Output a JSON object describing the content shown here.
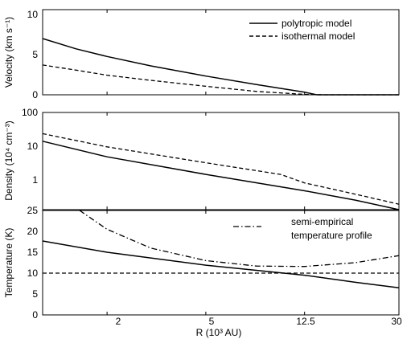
{
  "chart_data": [
    {
      "type": "line",
      "ylabel": "Velocity (km s⁻¹)",
      "xscale": "log",
      "xlim": [
        1.1,
        30
      ],
      "ylim": [
        0,
        10
      ],
      "yticks": [
        "0",
        "5",
        "10"
      ],
      "legend_placement": "top-right",
      "series": [
        {
          "name": "polytropic model",
          "style": "solid",
          "x": [
            1.1,
            1.5,
            2,
            3,
            5,
            8,
            12.5,
            14,
            20,
            30
          ],
          "y": [
            6.6,
            5.4,
            4.5,
            3.4,
            2.2,
            1.2,
            0.3,
            0,
            0,
            0
          ]
        },
        {
          "name": "isothermal model",
          "style": "dashed",
          "x": [
            1.1,
            1.5,
            2,
            3,
            5,
            8,
            12.5,
            15,
            20,
            30
          ],
          "y": [
            3.5,
            2.9,
            2.3,
            1.7,
            1.0,
            0.4,
            0.05,
            0,
            0,
            0
          ]
        }
      ]
    },
    {
      "type": "line",
      "ylabel": "Density (10⁴ cm⁻³)",
      "xscale": "log",
      "yscale": "log",
      "xlim": [
        1.1,
        30
      ],
      "ylim": [
        0.25,
        100
      ],
      "yticks": [
        "1",
        "10",
        "100"
      ],
      "series": [
        {
          "name": "",
          "style": "solid",
          "x": [
            1.1,
            2,
            5,
            12.5,
            20,
            30
          ],
          "y": [
            17,
            6.5,
            2.2,
            0.8,
            0.45,
            0.25
          ]
        },
        {
          "name": "",
          "style": "dashed",
          "x": [
            1.1,
            2,
            5,
            10,
            12.5,
            20,
            30
          ],
          "y": [
            27,
            12,
            4.5,
            2.2,
            1.3,
            0.65,
            0.35
          ]
        }
      ]
    },
    {
      "type": "line",
      "ylabel": "Temperature (K)",
      "xlabel": "R (10³ AU)",
      "xscale": "log",
      "xlim": [
        1.1,
        30
      ],
      "ylim": [
        0,
        25
      ],
      "yticks": [
        "0",
        "5",
        "10",
        "15",
        "20",
        "25"
      ],
      "xticks": [
        "2",
        "5",
        "12.5",
        "30"
      ],
      "legend_placement": "top-right",
      "series": [
        {
          "name": "",
          "style": "solid",
          "x": [
            1.1,
            2,
            5,
            12.5,
            20,
            30
          ],
          "y": [
            17.7,
            15,
            11.9,
            9.5,
            7.8,
            6.5
          ]
        },
        {
          "name": "",
          "style": "dashed",
          "x": [
            1.1,
            30
          ],
          "y": [
            10,
            10
          ]
        },
        {
          "name": "semi-empirical temperature profile",
          "legend_lines": [
            "semi-empirical",
            "temperature profile"
          ],
          "style": "dashdot",
          "x": [
            1.55,
            2,
            3,
            5,
            8,
            12.5,
            20,
            30
          ],
          "y": [
            25,
            20.5,
            16,
            13,
            11.7,
            11.6,
            12.5,
            14.2
          ]
        }
      ]
    }
  ]
}
